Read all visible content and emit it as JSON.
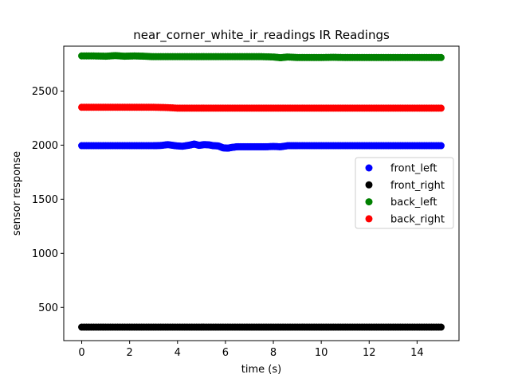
{
  "chart_data": {
    "type": "scatter",
    "title": "near_corner_white_ir_readings IR Readings",
    "xlabel": "time (s)",
    "ylabel": "sensor response",
    "xlim": [
      -0.75,
      15.75
    ],
    "ylim": [
      193,
      2915
    ],
    "xticks": [
      0,
      2,
      4,
      6,
      8,
      10,
      12,
      14
    ],
    "yticks": [
      500,
      1000,
      1500,
      2000,
      2500
    ],
    "grid": false,
    "legend_position": "center-right",
    "series": [
      {
        "name": "front_left",
        "color": "#0000ff",
        "x": [
          0,
          0.5,
          1,
          1.5,
          2,
          2.5,
          3,
          3.3,
          3.6,
          3.9,
          4.2,
          4.5,
          4.7,
          4.9,
          5.1,
          5.3,
          5.5,
          5.7,
          5.9,
          6.1,
          6.3,
          6.5,
          6.8,
          7.1,
          7.4,
          7.7,
          8.0,
          8.3,
          8.6,
          9.0,
          9.5,
          10,
          10.5,
          11,
          11.5,
          12,
          12.5,
          13,
          13.5,
          14,
          14.5,
          15
        ],
        "y": [
          1995,
          1995,
          1995,
          1995,
          1995,
          1995,
          1995,
          1997,
          2005,
          1995,
          1990,
          2000,
          2010,
          1998,
          2005,
          2003,
          1995,
          1993,
          1975,
          1972,
          1980,
          1985,
          1985,
          1985,
          1985,
          1985,
          1988,
          1985,
          1995,
          1995,
          1995,
          1995,
          1995,
          1995,
          1995,
          1995,
          1995,
          1995,
          1995,
          1995,
          1995,
          1995
        ]
      },
      {
        "name": "front_right",
        "color": "#000000",
        "x": [
          0,
          0.5,
          1,
          1.5,
          2,
          2.5,
          3,
          3.5,
          4,
          4.5,
          5,
          5.5,
          6,
          6.5,
          7,
          7.5,
          8,
          8.5,
          9,
          9.5,
          10,
          10.5,
          11,
          11.5,
          12,
          12.5,
          13,
          13.5,
          14,
          14.5,
          15
        ],
        "y": [
          318,
          318,
          318,
          318,
          318,
          318,
          318,
          318,
          318,
          318,
          318,
          318,
          318,
          318,
          318,
          318,
          318,
          318,
          318,
          318,
          318,
          318,
          318,
          318,
          318,
          318,
          318,
          318,
          318,
          318,
          318
        ]
      },
      {
        "name": "back_left",
        "color": "#008000",
        "x": [
          0,
          0.5,
          1,
          1.4,
          1.8,
          2.2,
          2.6,
          3,
          3.5,
          4,
          4.5,
          5,
          5.5,
          6,
          6.5,
          7,
          7.5,
          8,
          8.3,
          8.6,
          9,
          9.5,
          10,
          10.5,
          11,
          11.5,
          12,
          12.5,
          13,
          13.5,
          14,
          14.5,
          15
        ],
        "y": [
          2825,
          2825,
          2822,
          2828,
          2822,
          2825,
          2822,
          2818,
          2818,
          2818,
          2818,
          2818,
          2818,
          2818,
          2818,
          2818,
          2818,
          2815,
          2808,
          2815,
          2810,
          2810,
          2810,
          2812,
          2810,
          2810,
          2810,
          2810,
          2810,
          2810,
          2810,
          2810,
          2810
        ]
      },
      {
        "name": "back_right",
        "color": "#ff0000",
        "x": [
          0,
          0.5,
          1,
          1.5,
          2,
          2.5,
          3,
          3.5,
          4,
          4.5,
          5,
          5.5,
          6,
          6.5,
          7,
          7.5,
          8,
          8.5,
          9,
          9.5,
          10,
          10.5,
          11,
          11.5,
          12,
          12.5,
          13,
          13.5,
          14,
          14.5,
          15
        ],
        "y": [
          2350,
          2350,
          2350,
          2350,
          2350,
          2350,
          2350,
          2348,
          2342,
          2342,
          2342,
          2342,
          2342,
          2342,
          2342,
          2342,
          2342,
          2342,
          2342,
          2342,
          2342,
          2342,
          2342,
          2342,
          2342,
          2342,
          2342,
          2342,
          2342,
          2342,
          2342
        ]
      }
    ]
  }
}
